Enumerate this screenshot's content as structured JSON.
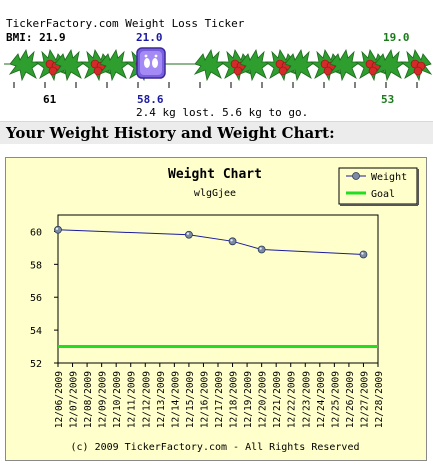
{
  "ticker": {
    "title": "TickerFactory.com Weight Loss Ticker",
    "bmi_label": "BMI: 21.9",
    "bmi_current": "21.0",
    "bmi_goal": "19.0",
    "start_weight": "61",
    "current_weight": "58.6",
    "goal_weight": "53",
    "progress_text": "2.4 kg lost. 5.6 kg to go.",
    "progress_fraction": 0.3,
    "colors": {
      "current": "#1a1aa0",
      "goal": "#1b7a1b",
      "holly_leaf": "#2e9e2e",
      "holly_berry": "#d42a2a"
    }
  },
  "section": {
    "title": "Your Weight History and Weight Chart:"
  },
  "chart_data": {
    "type": "line",
    "title": "Weight Chart",
    "subtitle": "wlgGjee",
    "footer": "(c) 2009 TickerFactory.com - All Rights Reserved",
    "xlabel": "",
    "ylabel": "",
    "categories": [
      "12/06/2009",
      "12/07/2009",
      "12/08/2009",
      "12/09/2009",
      "12/10/2009",
      "12/11/2009",
      "12/12/2009",
      "12/13/2009",
      "12/14/2009",
      "12/15/2009",
      "12/16/2009",
      "12/17/2009",
      "12/18/2009",
      "12/19/2009",
      "12/20/2009",
      "12/21/2009",
      "12/22/2009",
      "12/23/2009",
      "12/24/2009",
      "12/25/2009",
      "12/26/2009",
      "12/27/2009",
      "12/28/2009"
    ],
    "series": [
      {
        "name": "Weight",
        "color": "#1a1aa0",
        "points": [
          {
            "x": "12/06/2009",
            "y": 60.1
          },
          {
            "x": "12/15/2009",
            "y": 59.8
          },
          {
            "x": "12/18/2009",
            "y": 59.4
          },
          {
            "x": "12/20/2009",
            "y": 58.9
          },
          {
            "x": "12/27/2009",
            "y": 58.6
          }
        ]
      },
      {
        "name": "Goal",
        "color": "#22dd22",
        "value": 53
      }
    ],
    "yticks": [
      52,
      54,
      56,
      58,
      60
    ],
    "ylim": [
      52,
      61
    ],
    "grid": false,
    "legend": "top-right",
    "background": "#ffffcc"
  }
}
